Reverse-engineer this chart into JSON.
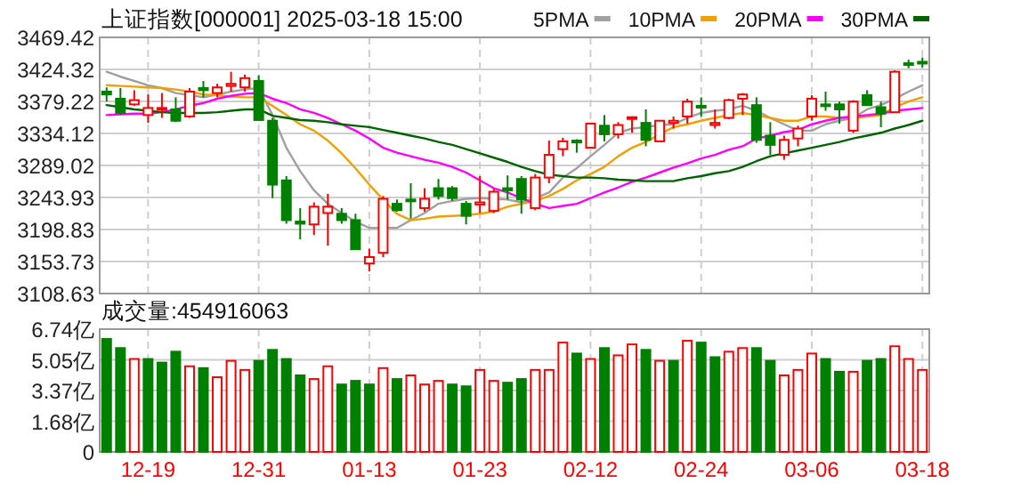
{
  "chart_data": [
    {
      "type": "candlestick",
      "title": "上证指数[000001] 2025-03-18 15:00",
      "categories": [
        null,
        null,
        null,
        null,
        null,
        null,
        null,
        null,
        null,
        null,
        null,
        null,
        null,
        null,
        null,
        null,
        null,
        null,
        null,
        null,
        null,
        null,
        null,
        null,
        null,
        null,
        null,
        null,
        null,
        null,
        null,
        null,
        null,
        null,
        null,
        null,
        null,
        null,
        null,
        null,
        null,
        null,
        null,
        null,
        null,
        null,
        null,
        null,
        null,
        null,
        null,
        null,
        null,
        null,
        null,
        null,
        null,
        null,
        null,
        null
      ],
      "ohlc": [
        [
          3393,
          3399,
          3379,
          3389
        ],
        [
          3383,
          3398,
          3360,
          3363
        ],
        [
          3375,
          3395,
          3373,
          3381
        ],
        [
          3360,
          3389,
          3349,
          3370
        ],
        [
          3368,
          3391,
          3356,
          3370
        ],
        [
          3368,
          3385,
          3350,
          3352
        ],
        [
          3358,
          3398,
          3356,
          3393
        ],
        [
          3398,
          3408,
          3385,
          3395
        ],
        [
          3391,
          3404,
          3385,
          3399
        ],
        [
          3401,
          3421,
          3393,
          3404
        ],
        [
          3399,
          3417,
          3393,
          3412
        ],
        [
          3408,
          3416,
          3352,
          3353
        ],
        [
          3352,
          3356,
          3243,
          3262
        ],
        [
          3268,
          3274,
          3207,
          3212
        ],
        [
          3210,
          3229,
          3185,
          3207
        ],
        [
          3206,
          3237,
          3191,
          3231
        ],
        [
          3222,
          3249,
          3176,
          3231
        ],
        [
          3221,
          3229,
          3207,
          3212
        ],
        [
          3212,
          3221,
          3171,
          3171
        ],
        [
          3151,
          3172,
          3140,
          3160
        ],
        [
          3166,
          3246,
          3160,
          3242
        ],
        [
          3235,
          3241,
          3224,
          3226
        ],
        [
          3241,
          3264,
          3214,
          3239
        ],
        [
          3229,
          3257,
          3224,
          3242
        ],
        [
          3257,
          3270,
          3241,
          3246
        ],
        [
          3257,
          3260,
          3239,
          3243
        ],
        [
          3235,
          3239,
          3206,
          3218
        ],
        [
          3234,
          3274,
          3222,
          3237
        ],
        [
          3225,
          3256,
          3222,
          3252
        ],
        [
          3257,
          3275,
          3241,
          3254
        ],
        [
          3270,
          3274,
          3221,
          3241
        ],
        [
          3229,
          3277,
          3226,
          3272
        ],
        [
          3272,
          3324,
          3264,
          3304
        ],
        [
          3312,
          3328,
          3302,
          3323
        ],
        [
          3324,
          3326,
          3307,
          3323
        ],
        [
          3314,
          3349,
          3314,
          3348
        ],
        [
          3345,
          3360,
          3323,
          3333
        ],
        [
          3333,
          3350,
          3327,
          3346
        ],
        [
          3355,
          3358,
          3335,
          3357
        ],
        [
          3349,
          3368,
          3316,
          3325
        ],
        [
          3323,
          3353,
          3323,
          3352
        ],
        [
          3349,
          3358,
          3341,
          3352
        ],
        [
          3358,
          3383,
          3348,
          3379
        ],
        [
          3373,
          3385,
          3358,
          3371
        ],
        [
          3346,
          3368,
          3341,
          3349
        ],
        [
          3356,
          3383,
          3354,
          3381
        ],
        [
          3383,
          3391,
          3360,
          3389
        ],
        [
          3374,
          3385,
          3321,
          3325
        ],
        [
          3331,
          3350,
          3304,
          3318
        ],
        [
          3304,
          3331,
          3297,
          3325
        ],
        [
          3327,
          3345,
          3316,
          3341
        ],
        [
          3358,
          3388,
          3352,
          3383
        ],
        [
          3375,
          3393,
          3366,
          3373
        ],
        [
          3375,
          3379,
          3348,
          3368
        ],
        [
          3338,
          3381,
          3335,
          3379
        ],
        [
          3388,
          3395,
          3373,
          3374
        ],
        [
          3371,
          3379,
          3343,
          3362
        ],
        [
          3364,
          3423,
          3363,
          3421
        ],
        [
          3433,
          3438,
          3426,
          3431
        ],
        [
          3435,
          3441,
          3427,
          3434
        ]
      ],
      "colors": [
        "#008000",
        "#008000",
        "#ff0000",
        "#ff0000",
        "#ff0000",
        "#008000",
        "#ff0000",
        "#008000",
        "#ff0000",
        "#ff0000",
        "#ff0000",
        "#008000",
        "#008000",
        "#008000",
        "#008000",
        "#ff0000",
        "#ff0000",
        "#008000",
        "#008000",
        "#ff0000",
        "#ff0000",
        "#008000",
        "#008000",
        "#ff0000",
        "#008000",
        "#008000",
        "#008000",
        "#ff0000",
        "#ff0000",
        "#008000",
        "#008000",
        "#ff0000",
        "#ff0000",
        "#ff0000",
        "#008000",
        "#ff0000",
        "#008000",
        "#ff0000",
        "#ff0000",
        "#008000",
        "#ff0000",
        "#ff0000",
        "#ff0000",
        "#008000",
        "#ff0000",
        "#ff0000",
        "#ff0000",
        "#008000",
        "#008000",
        "#ff0000",
        "#ff0000",
        "#ff0000",
        "#008000",
        "#008000",
        "#ff0000",
        "#008000",
        "#008000",
        "#ff0000",
        "#008000",
        "#008000"
      ],
      "series": [
        {
          "type": "line",
          "name": "5PMA",
          "color": "#a0a0a0",
          "values": [
            3421,
            3414,
            3408,
            3402,
            3398,
            3391,
            3388,
            3385,
            3389,
            3393,
            3396,
            3398,
            3360,
            3314,
            3281,
            3254,
            3235,
            3222,
            3210,
            3201,
            3201,
            3201,
            3212,
            3222,
            3235,
            3239,
            3242,
            3243,
            3242,
            3241,
            3237,
            3243,
            3251,
            3272,
            3285,
            3302,
            3318,
            3335,
            3341,
            3343,
            3346,
            3347,
            3356,
            3363,
            3366,
            3368,
            3373,
            3366,
            3356,
            3347,
            3338,
            3338,
            3347,
            3352,
            3356,
            3368,
            3374,
            3383,
            3393,
            3402
          ]
        },
        {
          "type": "line",
          "name": "10PMA",
          "color": "#f0a000",
          "values": [
            3402,
            3401,
            3400,
            3399,
            3398,
            3396,
            3393,
            3389,
            3388,
            3386,
            3385,
            3385,
            3373,
            3360,
            3347,
            3338,
            3324,
            3306,
            3285,
            3262,
            3241,
            3221,
            3212,
            3214,
            3217,
            3218,
            3219,
            3221,
            3224,
            3231,
            3235,
            3239,
            3246,
            3256,
            3268,
            3277,
            3287,
            3302,
            3314,
            3322,
            3333,
            3343,
            3347,
            3352,
            3356,
            3360,
            3363,
            3360,
            3356,
            3352,
            3352,
            3358,
            3358,
            3356,
            3356,
            3358,
            3360,
            3371,
            3379,
            3385
          ]
        },
        {
          "type": "line",
          "name": "20PMA",
          "color": "#ff00ff",
          "values": [
            3360,
            3361,
            3362,
            3362,
            3364,
            3368,
            3373,
            3377,
            3383,
            3387,
            3390,
            3391,
            3383,
            3377,
            3368,
            3363,
            3356,
            3347,
            3338,
            3327,
            3314,
            3307,
            3302,
            3297,
            3293,
            3287,
            3279,
            3268,
            3257,
            3251,
            3243,
            3235,
            3229,
            3232,
            3235,
            3243,
            3251,
            3258,
            3266,
            3272,
            3279,
            3286,
            3292,
            3299,
            3304,
            3311,
            3316,
            3327,
            3331,
            3336,
            3339,
            3347,
            3352,
            3356,
            3358,
            3360,
            3362,
            3366,
            3368,
            3370
          ]
        },
        {
          "type": "line",
          "name": "30PMA",
          "color": "#006400",
          "values": [
            3374,
            3371,
            3368,
            3366,
            3364,
            3363,
            3363,
            3363,
            3364,
            3366,
            3368,
            3368,
            3359,
            3356,
            3353,
            3352,
            3350,
            3347,
            3345,
            3343,
            3339,
            3335,
            3331,
            3327,
            3322,
            3318,
            3312,
            3306,
            3300,
            3294,
            3287,
            3281,
            3276,
            3274,
            3272,
            3272,
            3271,
            3269,
            3268,
            3267,
            3267,
            3267,
            3271,
            3274,
            3278,
            3281,
            3287,
            3295,
            3302,
            3306,
            3310,
            3314,
            3318,
            3322,
            3327,
            3331,
            3335,
            3341,
            3346,
            3352
          ]
        }
      ],
      "ylim": [
        3108.63,
        3469.42
      ],
      "yticks": [
        3108.63,
        3153.73,
        3198.83,
        3243.93,
        3289.02,
        3334.12,
        3379.22,
        3424.32,
        3469.42
      ],
      "grid": true,
      "legend": "top right"
    },
    {
      "type": "bar",
      "title": "成交量:454916063",
      "categories": [
        null,
        null,
        null,
        "12-19",
        null,
        null,
        null,
        null,
        null,
        null,
        null,
        "12-31",
        null,
        null,
        null,
        null,
        null,
        null,
        null,
        "01-13",
        null,
        null,
        null,
        null,
        null,
        null,
        null,
        "01-23",
        null,
        null,
        null,
        null,
        null,
        null,
        null,
        "02-12",
        null,
        null,
        null,
        null,
        null,
        null,
        null,
        "02-24",
        null,
        null,
        null,
        null,
        null,
        null,
        null,
        "03-06",
        null,
        null,
        null,
        null,
        null,
        null,
        null,
        "03-18"
      ],
      "values": [
        6.2,
        5.7,
        5.1,
        5.1,
        4.9,
        5.5,
        4.7,
        4.6,
        4.1,
        5.0,
        4.5,
        5.0,
        5.6,
        5.1,
        4.2,
        4.0,
        4.7,
        3.7,
        3.9,
        3.7,
        4.6,
        4.0,
        4.2,
        3.7,
        3.9,
        3.7,
        3.6,
        4.5,
        3.9,
        3.8,
        4.0,
        4.5,
        4.5,
        6.0,
        5.4,
        5.1,
        5.7,
        5.3,
        5.9,
        5.6,
        5.0,
        5.0,
        6.1,
        6.0,
        5.2,
        5.5,
        5.7,
        5.7,
        5.0,
        4.2,
        4.5,
        5.4,
        5.1,
        4.4,
        4.4,
        5.0,
        5.1,
        5.8,
        5.1,
        4.5
      ],
      "colors": [
        "#008000",
        "#008000",
        "#ff0000",
        "#008000",
        "#008000",
        "#008000",
        "#ff0000",
        "#008000",
        "#ff0000",
        "#ff0000",
        "#ff0000",
        "#008000",
        "#008000",
        "#008000",
        "#008000",
        "#ff0000",
        "#ff0000",
        "#008000",
        "#008000",
        "#008000",
        "#ff0000",
        "#008000",
        "#ff0000",
        "#ff0000",
        "#ff0000",
        "#008000",
        "#008000",
        "#ff0000",
        "#ff0000",
        "#008000",
        "#008000",
        "#ff0000",
        "#ff0000",
        "#ff0000",
        "#008000",
        "#ff0000",
        "#008000",
        "#ff0000",
        "#ff0000",
        "#008000",
        "#ff0000",
        "#008000",
        "#ff0000",
        "#008000",
        "#008000",
        "#ff0000",
        "#ff0000",
        "#008000",
        "#008000",
        "#ff0000",
        "#ff0000",
        "#ff0000",
        "#008000",
        "#008000",
        "#ff0000",
        "#008000",
        "#008000",
        "#ff0000",
        "#ff0000",
        "#ff0000"
      ],
      "ylim": [
        0,
        6.74
      ],
      "yticks": [
        {
          "value": 0,
          "label": "0"
        },
        {
          "value": 1.68,
          "label": "1.68亿"
        },
        {
          "value": 3.37,
          "label": "3.37亿"
        },
        {
          "value": 5.05,
          "label": "5.05亿"
        },
        {
          "value": 6.74,
          "label": "6.74亿"
        }
      ],
      "grid": true
    }
  ]
}
